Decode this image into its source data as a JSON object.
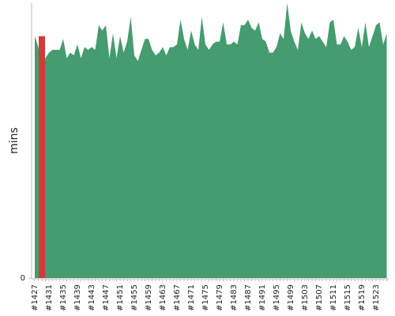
{
  "chart_data": {
    "type": "area",
    "y_label": "mins",
    "categories": [
      "#1427",
      null,
      null,
      null,
      "#1431",
      null,
      null,
      null,
      "#1435",
      null,
      null,
      null,
      "#1439",
      null,
      null,
      null,
      "#1443",
      null,
      null,
      null,
      "#1447",
      null,
      null,
      null,
      "#1451",
      null,
      null,
      null,
      "#1455",
      null,
      null,
      null,
      "#1459",
      null,
      null,
      null,
      "#1463",
      null,
      null,
      null,
      "#1467",
      null,
      null,
      null,
      "#1471",
      null,
      null,
      null,
      "#1475",
      null,
      null,
      null,
      "#1479",
      null,
      null,
      null,
      "#1483",
      null,
      null,
      null,
      "#1487",
      null,
      null,
      null,
      "#1491",
      null,
      null,
      null,
      "#1495",
      null,
      null,
      null,
      "#1499",
      null,
      null,
      null,
      "#1503",
      null,
      null,
      null,
      "#1507",
      null,
      null,
      null,
      "#1511",
      null,
      null,
      null,
      "#1515",
      null,
      null,
      null,
      "#1519",
      null,
      null,
      null,
      "#1523",
      null,
      null,
      null
    ],
    "series": [
      {
        "color": "#459c6e",
        "values": [
          88,
          84,
          75,
          80,
          82,
          83,
          83,
          83,
          87,
          80,
          82,
          81,
          85,
          80,
          84,
          83,
          84,
          83,
          92,
          90,
          92,
          80,
          89,
          80,
          88,
          82,
          86,
          95,
          81,
          79,
          83,
          87,
          87,
          83,
          81,
          82,
          84,
          81,
          84,
          84,
          85,
          94,
          87,
          83,
          90,
          85,
          83,
          95,
          85,
          83,
          85,
          86,
          86,
          93,
          85,
          85,
          86,
          85,
          92,
          92,
          94,
          91,
          90,
          93,
          87,
          86,
          82,
          82,
          84,
          89,
          87,
          100,
          90,
          86,
          83,
          93,
          89,
          87,
          90,
          87,
          88,
          86,
          84,
          93,
          94,
          85,
          85,
          88,
          86,
          83,
          84,
          91,
          84,
          93,
          84,
          88,
          92,
          93,
          85,
          89
        ]
      },
      {
        "color": "#d13b3b",
        "values": [
          null,
          null,
          88,
          null,
          null,
          null,
          null,
          null,
          null,
          null,
          null,
          null,
          null,
          null,
          null,
          null,
          null,
          null,
          null,
          null,
          null,
          null,
          null,
          null,
          null,
          null,
          null,
          null,
          null,
          null,
          null,
          null,
          null,
          null,
          null,
          null,
          null,
          null,
          null,
          null,
          null,
          null,
          null,
          null,
          null,
          null,
          null,
          null,
          null,
          null,
          null,
          null,
          null,
          null,
          null,
          null,
          null,
          null,
          null,
          null,
          null,
          null,
          null,
          null,
          null,
          null,
          null,
          null,
          null,
          null,
          null,
          null,
          null,
          null,
          null,
          null,
          null,
          null,
          null,
          null,
          null,
          null,
          null,
          null,
          null,
          null,
          null,
          null,
          null,
          null,
          null,
          null,
          null,
          null,
          null,
          null,
          null,
          null,
          null,
          null
        ]
      }
    ],
    "ylim": [
      0,
      100
    ],
    "yticks": [
      0
    ]
  }
}
